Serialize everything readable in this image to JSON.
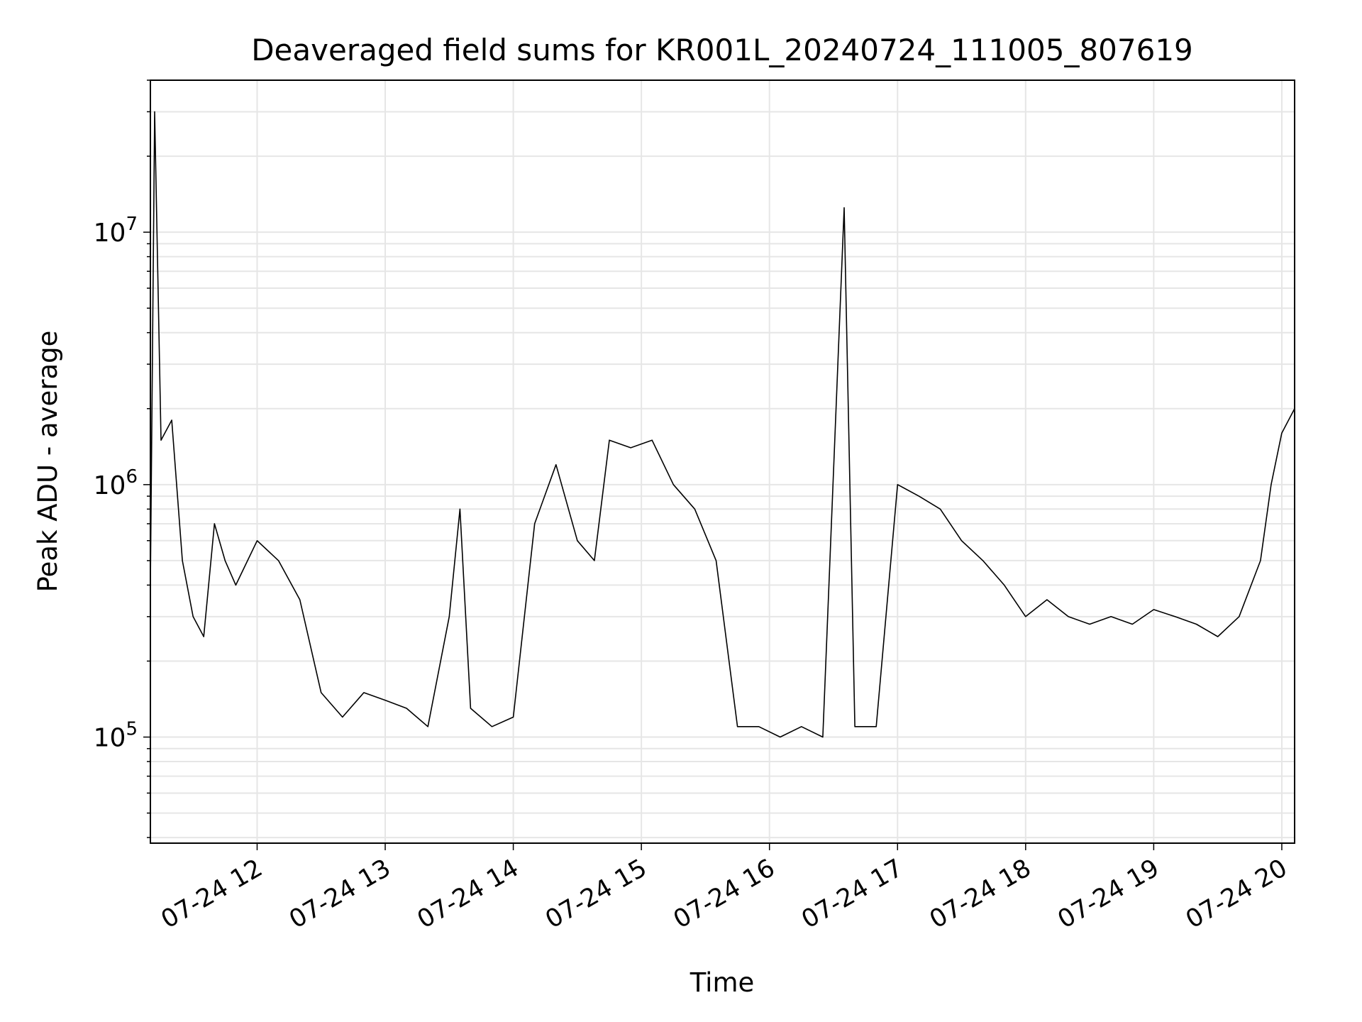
{
  "chart_data": {
    "type": "line",
    "title": "Deaveraged field sums for KR001L_20240724_111005_807619",
    "xlabel": "Time",
    "ylabel": "Peak ADU - average",
    "y_scale": "log",
    "ylim": [
      38000,
      40000000
    ],
    "xlim": [
      "2024-07-24 11:10",
      "2024-07-24 20:06"
    ],
    "grid": true,
    "line_color": "#000000",
    "x_tick_labels": [
      "07-24 12",
      "07-24 13",
      "07-24 14",
      "07-24 15",
      "07-24 16",
      "07-24 17",
      "07-24 18",
      "07-24 19",
      "07-24 20"
    ],
    "x_ticks": [
      "2024-07-24 12:00",
      "2024-07-24 13:00",
      "2024-07-24 14:00",
      "2024-07-24 15:00",
      "2024-07-24 16:00",
      "2024-07-24 17:00",
      "2024-07-24 18:00",
      "2024-07-24 19:00",
      "2024-07-24 20:00"
    ],
    "y_tick_labels": [
      {
        "value": 100000,
        "base": "10",
        "exp": "5"
      },
      {
        "value": 1000000,
        "base": "10",
        "exp": "6"
      },
      {
        "value": 10000000,
        "base": "10",
        "exp": "7"
      }
    ],
    "series": [
      {
        "x": [
          "2024-07-24 11:10",
          "2024-07-24 11:12",
          "2024-07-24 11:15",
          "2024-07-24 11:20",
          "2024-07-24 11:25",
          "2024-07-24 11:30",
          "2024-07-24 11:35",
          "2024-07-24 11:40",
          "2024-07-24 11:45",
          "2024-07-24 11:50",
          "2024-07-24 12:00",
          "2024-07-24 12:10",
          "2024-07-24 12:20",
          "2024-07-24 12:30",
          "2024-07-24 12:40",
          "2024-07-24 12:50",
          "2024-07-24 13:00",
          "2024-07-24 13:10",
          "2024-07-24 13:20",
          "2024-07-24 13:30",
          "2024-07-24 13:35",
          "2024-07-24 13:40",
          "2024-07-24 13:50",
          "2024-07-24 14:00",
          "2024-07-24 14:10",
          "2024-07-24 14:20",
          "2024-07-24 14:30",
          "2024-07-24 14:38",
          "2024-07-24 14:45",
          "2024-07-24 14:55",
          "2024-07-24 15:05",
          "2024-07-24 15:15",
          "2024-07-24 15:25",
          "2024-07-24 15:35",
          "2024-07-24 15:45",
          "2024-07-24 15:55",
          "2024-07-24 16:05",
          "2024-07-24 16:15",
          "2024-07-24 16:25",
          "2024-07-24 16:35",
          "2024-07-24 16:40",
          "2024-07-24 16:50",
          "2024-07-24 17:00",
          "2024-07-24 17:10",
          "2024-07-24 17:20",
          "2024-07-24 17:30",
          "2024-07-24 17:40",
          "2024-07-24 17:50",
          "2024-07-24 18:00",
          "2024-07-24 18:10",
          "2024-07-24 18:20",
          "2024-07-24 18:30",
          "2024-07-24 18:40",
          "2024-07-24 18:50",
          "2024-07-24 19:00",
          "2024-07-24 19:10",
          "2024-07-24 19:20",
          "2024-07-24 19:30",
          "2024-07-24 19:40",
          "2024-07-24 19:50",
          "2024-07-24 19:55",
          "2024-07-24 20:00",
          "2024-07-24 20:06"
        ],
        "values": [
          400000,
          30000000,
          1500000,
          1800000,
          500000,
          300000,
          250000,
          700000,
          500000,
          400000,
          600000,
          500000,
          350000,
          150000,
          120000,
          150000,
          140000,
          130000,
          110000,
          300000,
          800000,
          130000,
          110000,
          120000,
          700000,
          1200000,
          600000,
          500000,
          1500000,
          1400000,
          1500000,
          1000000,
          800000,
          500000,
          110000,
          110000,
          100000,
          110000,
          100000,
          12500000,
          110000,
          110000,
          1000000,
          900000,
          800000,
          600000,
          500000,
          400000,
          300000,
          350000,
          300000,
          280000,
          300000,
          280000,
          320000,
          300000,
          280000,
          250000,
          300000,
          500000,
          1000000,
          1600000,
          2000000
        ]
      }
    ]
  }
}
